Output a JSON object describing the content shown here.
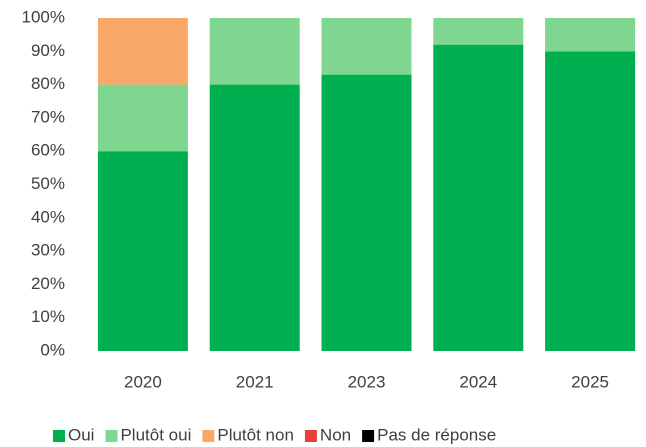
{
  "chart_data": {
    "type": "stacked_bar",
    "categories": [
      "2020",
      "2021",
      "2023",
      "2024",
      "2025"
    ],
    "series": [
      {
        "name": "Oui",
        "color": "#00b050",
        "values": [
          60,
          80,
          83,
          92,
          90
        ]
      },
      {
        "name": "Plutôt oui",
        "color": "#7fd68f",
        "values": [
          20,
          20,
          17,
          8,
          10
        ]
      },
      {
        "name": "Plutôt non",
        "color": "#f8a96a",
        "values": [
          20,
          0,
          0,
          0,
          0
        ]
      },
      {
        "name": "Non",
        "color": "#e8413c",
        "values": [
          0,
          0,
          0,
          0,
          0
        ]
      },
      {
        "name": "Pas de réponse",
        "color": "#000000",
        "values": [
          0,
          0,
          0,
          0,
          0
        ]
      }
    ],
    "ylim": [
      0,
      100
    ],
    "yticks": [
      {
        "value": 0,
        "label": "0%"
      },
      {
        "value": 10,
        "label": "10%"
      },
      {
        "value": 20,
        "label": "20%"
      },
      {
        "value": 30,
        "label": "30%"
      },
      {
        "value": 40,
        "label": "40%"
      },
      {
        "value": 50,
        "label": "50%"
      },
      {
        "value": 60,
        "label": "60%"
      },
      {
        "value": 70,
        "label": "70%"
      },
      {
        "value": 80,
        "label": "80%"
      },
      {
        "value": 90,
        "label": "90%"
      },
      {
        "value": 100,
        "label": "100%"
      }
    ],
    "grid": false,
    "legend": "bottom"
  }
}
